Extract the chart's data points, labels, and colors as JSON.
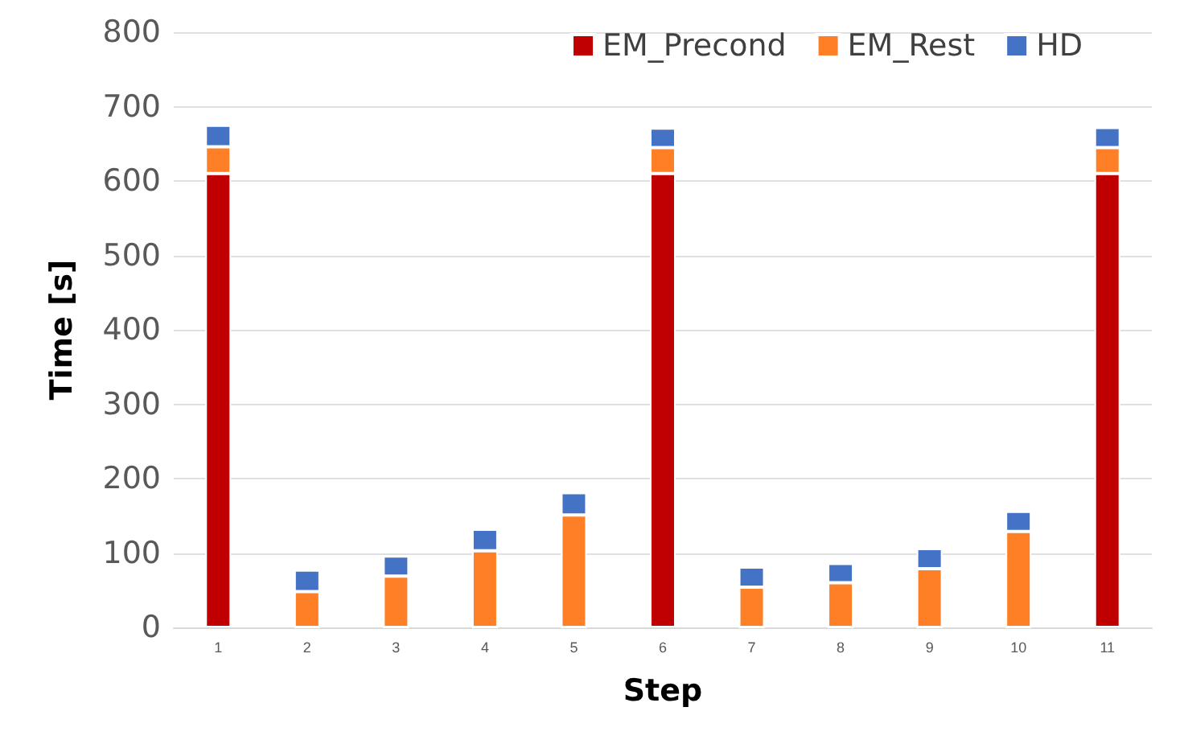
{
  "chart_data": {
    "type": "bar",
    "stacked": true,
    "xlabel": "Step",
    "ylabel": "Time [s]",
    "categories": [
      "1",
      "2",
      "3",
      "4",
      "5",
      "6",
      "7",
      "8",
      "9",
      "10",
      "11"
    ],
    "series": [
      {
        "name": "EM_Precond",
        "color": "#c00000",
        "values": [
          610,
          0,
          0,
          0,
          0,
          610,
          0,
          0,
          0,
          0,
          610
        ]
      },
      {
        "name": "EM_Rest",
        "color": "#ff7f27",
        "values": [
          36,
          48,
          69,
          103,
          151,
          35,
          54,
          60,
          79,
          129,
          35
        ]
      },
      {
        "name": "HD",
        "color": "#4472c4",
        "values": [
          29,
          29,
          27,
          29,
          30,
          26,
          27,
          26,
          27,
          27,
          27
        ]
      }
    ],
    "ylim": [
      0,
      800
    ],
    "yticks": [
      0,
      100,
      200,
      300,
      400,
      500,
      600,
      700,
      800
    ],
    "grid": "y",
    "legend": "top right"
  }
}
